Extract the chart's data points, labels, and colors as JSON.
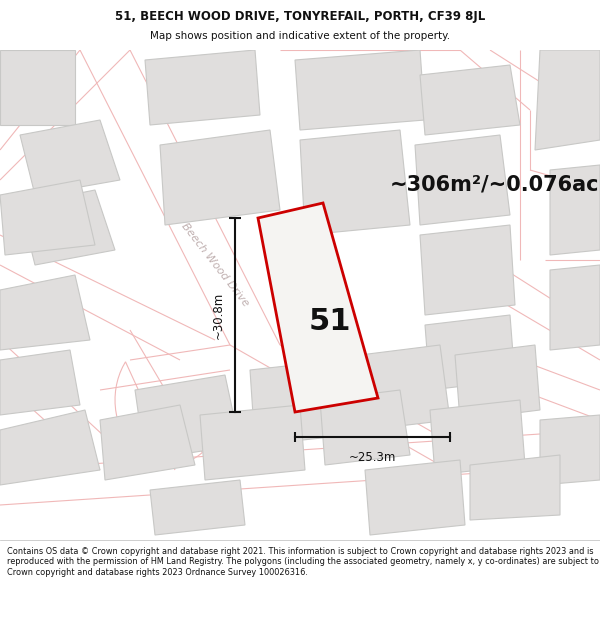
{
  "title_line1": "51, BEECH WOOD DRIVE, TONYREFAIL, PORTH, CF39 8JL",
  "title_line2": "Map shows position and indicative extent of the property.",
  "area_text": "~306m²/~0.076ac.",
  "plot_number": "51",
  "dim_width": "~25.3m",
  "dim_height": "~30.8m",
  "street_label": "Beech Wood Drive",
  "footer_text": "Contains OS data © Crown copyright and database right 2021. This information is subject to Crown copyright and database rights 2023 and is reproduced with the permission of HM Land Registry. The polygons (including the associated geometry, namely x, y co-ordinates) are subject to Crown copyright and database rights 2023 Ordnance Survey 100026316.",
  "bg_color": "#f5f4f2",
  "plot_fill": "#f5f4f2",
  "plot_edge": "#cc0000",
  "building_fill": "#e0dedd",
  "building_edge": "#c8c8c6",
  "road_line": "#f0b8b8",
  "title_bg": "#ffffff",
  "footer_bg": "#ffffff",
  "dim_color": "#111111",
  "text_color": "#111111",
  "street_color": "#c0b0b0",
  "area_color": "#111111"
}
